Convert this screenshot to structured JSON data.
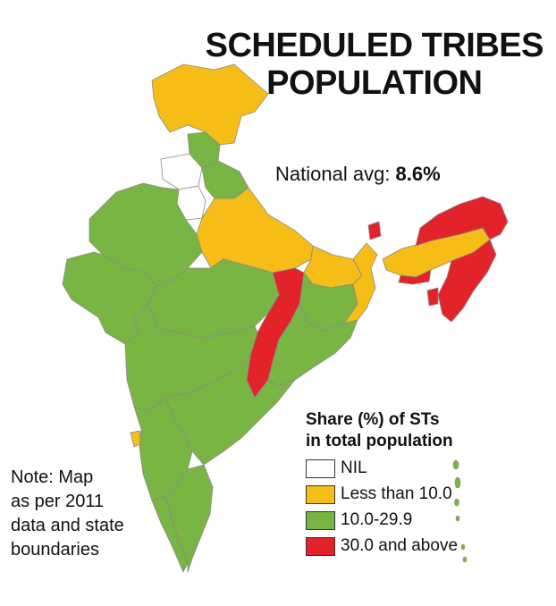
{
  "title_lines": [
    "SCHEDULED TRIBES",
    "POPULATION"
  ],
  "national_avg": {
    "label": "National avg:",
    "value": "8.6%"
  },
  "legend": {
    "title_lines": [
      "Share (%) of STs",
      "in total population"
    ],
    "items": [
      {
        "label": "NIL",
        "color": "#ffffff"
      },
      {
        "label": "Less than 10.0",
        "color": "#f6bd17"
      },
      {
        "label": "10.0-29.9",
        "color": "#79b543"
      },
      {
        "label": "30.0 and above",
        "color": "#e3232a"
      }
    ]
  },
  "note_lines": [
    "Note: Map",
    "as per 2011",
    "data and state",
    "boundaries"
  ],
  "regions": [
    {
      "name": "jammu-kashmir",
      "category": 1
    },
    {
      "name": "himachal-pradesh",
      "category": 2
    },
    {
      "name": "punjab",
      "category": 0
    },
    {
      "name": "haryana-delhi",
      "category": 0
    },
    {
      "name": "uttarakhand",
      "category": 2
    },
    {
      "name": "rajasthan",
      "category": 2
    },
    {
      "name": "uttar-pradesh",
      "category": 1
    },
    {
      "name": "gujarat",
      "category": 2
    },
    {
      "name": "madhya-pradesh",
      "category": 2
    },
    {
      "name": "bihar",
      "category": 1
    },
    {
      "name": "jharkhand",
      "category": 2
    },
    {
      "name": "west-bengal",
      "category": 1
    },
    {
      "name": "chhattisgarh",
      "category": 3
    },
    {
      "name": "odisha",
      "category": 2
    },
    {
      "name": "maharashtra",
      "category": 2
    },
    {
      "name": "andhra-pradesh",
      "category": 2
    },
    {
      "name": "goa",
      "category": 1
    },
    {
      "name": "karnataka",
      "category": 2
    },
    {
      "name": "kerala",
      "category": 2
    },
    {
      "name": "tamil-nadu",
      "category": 2
    },
    {
      "name": "sikkim",
      "category": 3
    },
    {
      "name": "assam",
      "category": 1
    },
    {
      "name": "northeast-states",
      "category": 3
    },
    {
      "name": "tripura",
      "category": 3
    }
  ]
}
